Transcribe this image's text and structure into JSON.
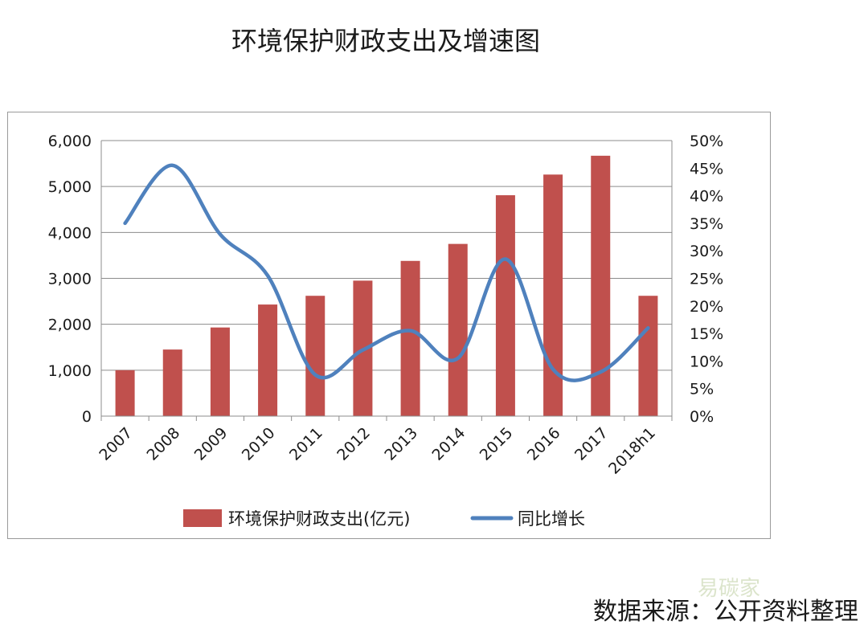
{
  "chart_data": {
    "type": "bar",
    "title": "环境保护财政支出及增速图",
    "categories": [
      "2007",
      "2008",
      "2009",
      "2010",
      "2011",
      "2012",
      "2013",
      "2014",
      "2015",
      "2016",
      "2017",
      "2018h1"
    ],
    "series": [
      {
        "name": "环境保护财政支出(亿元)",
        "type": "bar",
        "axis": "left",
        "color": "#c0504d",
        "values": [
          1000,
          1450,
          1930,
          2430,
          2620,
          2950,
          3380,
          3750,
          4810,
          5260,
          5670,
          2620
        ]
      },
      {
        "name": "同比增长",
        "type": "line",
        "axis": "right",
        "color": "#4f81bd",
        "values": [
          35,
          45.5,
          33,
          25.5,
          7.5,
          12,
          15.5,
          10.5,
          28.5,
          8.5,
          8,
          16
        ]
      }
    ],
    "y_left": {
      "min": 0,
      "max": 6000,
      "ticks": [
        0,
        1000,
        2000,
        3000,
        4000,
        5000,
        6000
      ],
      "tick_labels": [
        "0",
        "1,000",
        "2,000",
        "3,000",
        "4,000",
        "5,000",
        "6,000"
      ]
    },
    "y_right": {
      "min": 0,
      "max": 50,
      "ticks": [
        0,
        5,
        10,
        15,
        20,
        25,
        30,
        35,
        40,
        45,
        50
      ],
      "tick_labels": [
        "0%",
        "5%",
        "10%",
        "15%",
        "20%",
        "25%",
        "30%",
        "35%",
        "40%",
        "45%",
        "50%"
      ]
    },
    "grid": true,
    "legend_position": "bottom"
  },
  "source_note": "数据来源：公开资料整理",
  "watermark": "易碳家"
}
